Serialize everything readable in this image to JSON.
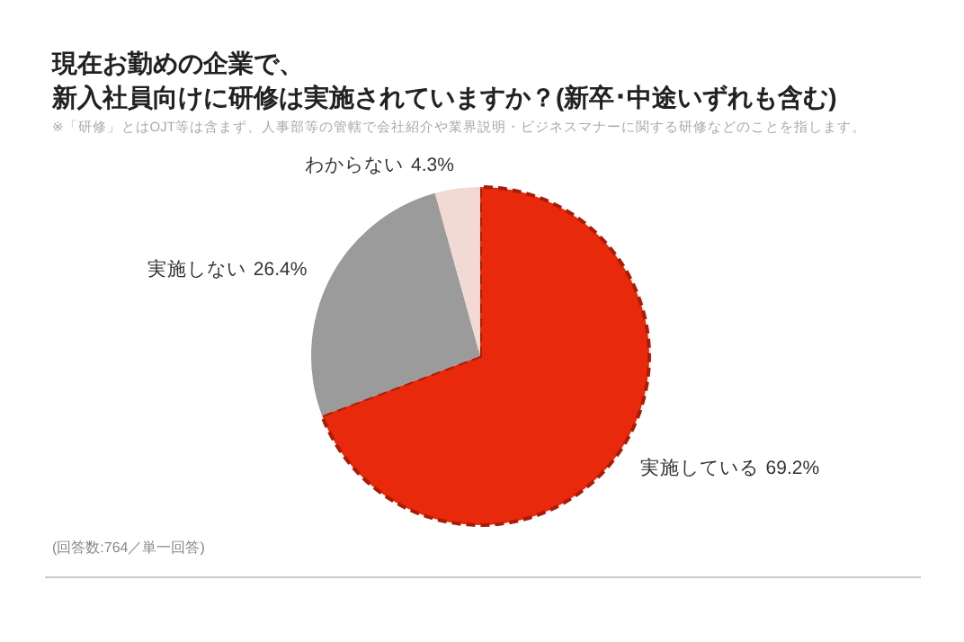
{
  "chart_data": {
    "type": "pie",
    "title": "現在お勤めの企業で、新入社員向けに研修は実施されていますか？(新卒･中途いずれも含む)",
    "subtitle": "※「研修」とはOJT等は含まず、人事部等の管轄で会社紹介や業界説明・ビジネスマナーに関する研修などのことを指します。",
    "categories": [
      "実施している",
      "実施しない",
      "わからない"
    ],
    "values": [
      69.2,
      26.4,
      4.3
    ],
    "colors": [
      "#e8290b",
      "#9b9b9b",
      "#f2d9d3"
    ],
    "value_labels": [
      "69.2%",
      "26.4%",
      "4.3%"
    ],
    "annotations": [
      "(回答数:764／単一回答)"
    ]
  }
}
